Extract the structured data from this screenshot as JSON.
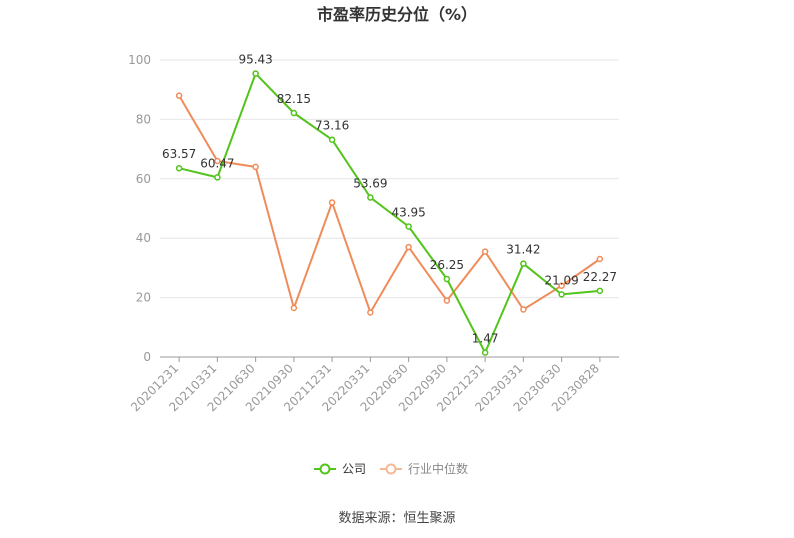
{
  "chart_data": {
    "type": "line",
    "title": "市盈率历史分位（%）",
    "categories": [
      "20201231",
      "20210331",
      "20210630",
      "20210930",
      "20211231",
      "20220331",
      "20220630",
      "20220930",
      "20221231",
      "20230331",
      "20230630",
      "20230828"
    ],
    "ylim": [
      0,
      100
    ],
    "yticks": [
      0,
      20,
      40,
      60,
      80,
      100
    ],
    "grid": true,
    "legend_position": "bottom",
    "series": [
      {
        "name": "公司",
        "color": "#52c41a",
        "values": [
          63.57,
          60.47,
          95.43,
          82.15,
          73.16,
          53.69,
          43.95,
          26.25,
          1.47,
          31.42,
          21.09,
          22.27
        ],
        "labels": [
          "63.57",
          "60.47",
          "95.43",
          "82.15",
          "73.16",
          "53.69",
          "43.95",
          "26.25",
          "1.47",
          "31.42",
          "21.09",
          "22.27"
        ]
      },
      {
        "name": "行业中位数",
        "color": "#f08c5a",
        "values": [
          88,
          66,
          64,
          16.5,
          52,
          15,
          37,
          19,
          35.5,
          16,
          24,
          33
        ]
      }
    ],
    "source": "数据来源：恒生聚源"
  }
}
